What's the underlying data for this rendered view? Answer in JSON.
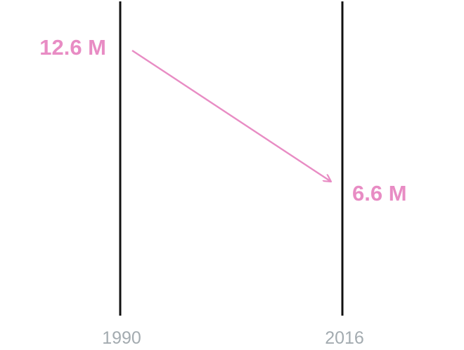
{
  "chart_data": {
    "type": "line",
    "title": "",
    "categories": [
      "1990",
      "2016"
    ],
    "series": [
      {
        "values": [
          12.6,
          6.6
        ]
      }
    ],
    "value_labels": [
      "12.6 M",
      "6.6 M"
    ],
    "unit": "M",
    "colors": {
      "series": "#e88cc4",
      "axis": "#111111",
      "tick_label": "#a3abb0"
    },
    "grid": false
  }
}
